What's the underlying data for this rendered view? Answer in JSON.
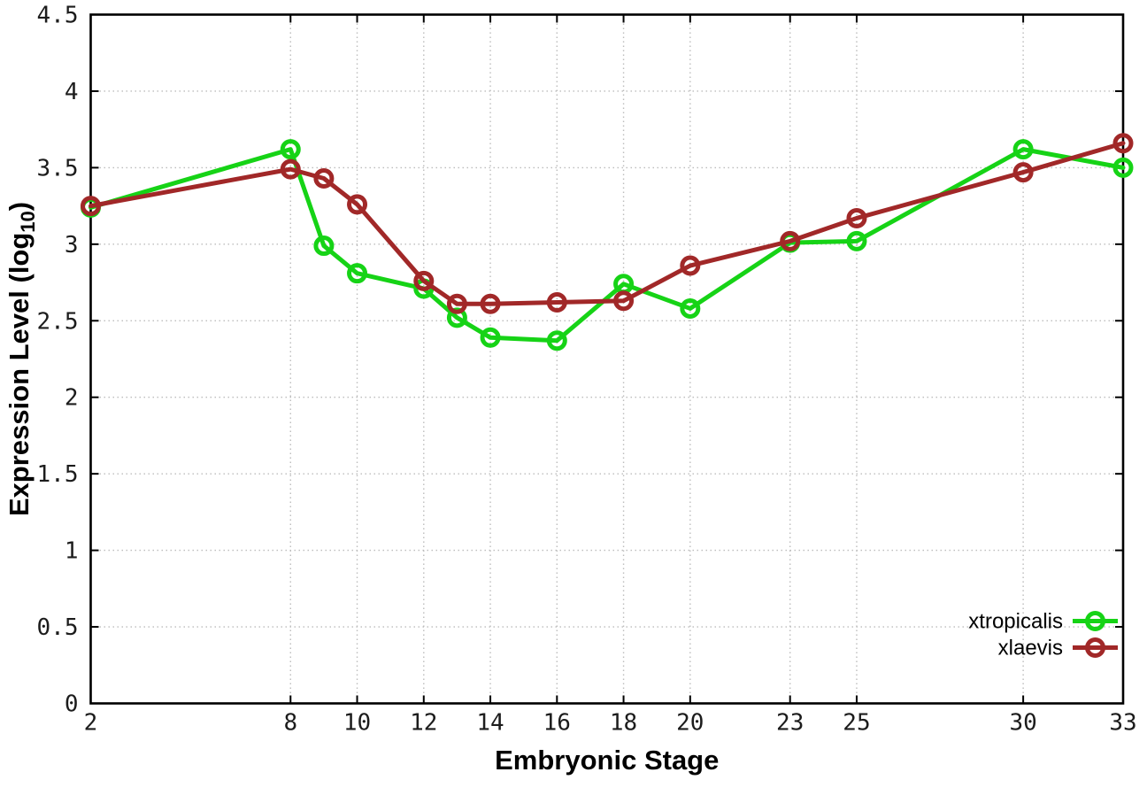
{
  "chart_data": {
    "type": "line",
    "title": "",
    "xlabel": "Embryonic Stage",
    "ylabel_main": "Expression Level (log",
    "ylabel_sub": "10",
    "ylabel_close": ")",
    "x": [
      2,
      8,
      9,
      10,
      12,
      13,
      14,
      16,
      18,
      20,
      23,
      25,
      30,
      33
    ],
    "series": [
      {
        "name": "xtropicalis",
        "color": "#16d316",
        "values": [
          3.24,
          3.62,
          2.99,
          2.81,
          2.71,
          2.52,
          2.39,
          2.37,
          2.74,
          2.58,
          3.01,
          3.02,
          3.62,
          3.5
        ]
      },
      {
        "name": "xlaevis",
        "color": "#a12828",
        "values": [
          3.25,
          3.49,
          3.43,
          3.26,
          2.76,
          2.61,
          2.61,
          2.62,
          2.63,
          2.86,
          3.02,
          3.17,
          3.47,
          3.66
        ]
      }
    ],
    "xlim": [
      2,
      33
    ],
    "ylim": [
      0,
      4.5
    ],
    "x_tick_labels": [
      "2",
      "8",
      "10",
      "12",
      "14",
      "16",
      "18",
      "20",
      "23",
      "25",
      "30",
      "33"
    ],
    "x_tick_values": [
      2,
      8,
      10,
      12,
      14,
      16,
      18,
      20,
      23,
      25,
      30,
      33
    ],
    "y_tick_labels": [
      "0",
      "0.5",
      "1",
      "1.5",
      "2",
      "2.5",
      "3",
      "3.5",
      "4",
      "4.5"
    ],
    "y_tick_values": [
      0,
      0.5,
      1,
      1.5,
      2,
      2.5,
      3,
      3.5,
      4,
      4.5
    ],
    "grid": "dotted, both axes at labeled ticks",
    "legend_position": "bottom-right-inside",
    "marker": "open-circle",
    "colors": {
      "background": "#ffffff",
      "border": "#000000",
      "gridline": "#bcbcbc",
      "tick_text": "#1c1c1c"
    }
  }
}
